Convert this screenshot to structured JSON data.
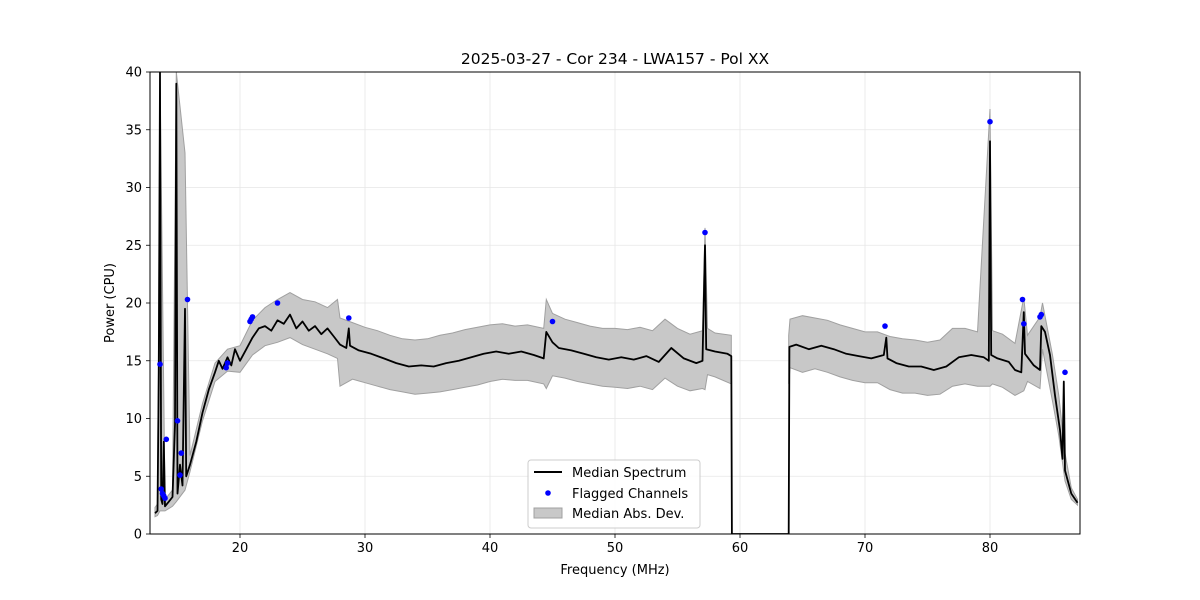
{
  "chart_data": {
    "type": "line",
    "title": "2025-03-27 - Cor 234 - LWA157 - Pol XX",
    "xlabel": "Frequency (MHz)",
    "ylabel": "Power (CPU)",
    "xlim": [
      12.8,
      87.2
    ],
    "ylim": [
      0,
      40
    ],
    "xticks": [
      20,
      30,
      40,
      50,
      60,
      70,
      80
    ],
    "yticks": [
      0,
      5,
      10,
      15,
      20,
      25,
      30,
      35,
      40
    ],
    "grid": true,
    "legend": {
      "placement": "lower-center",
      "entries": [
        "Median Spectrum",
        "Flagged Channels",
        "Median Abs. Dev."
      ]
    },
    "colors": {
      "median": "#000000",
      "flagged": "#0000ff",
      "mad_fill": "#c8c8c8",
      "mad_edge": "#a0a0a0",
      "grid": "#e6e6e6"
    },
    "series": [
      {
        "name": "Median Spectrum",
        "points": [
          [
            13.2,
            1.8
          ],
          [
            13.4,
            2.0
          ],
          [
            13.5,
            14.0
          ],
          [
            13.6,
            40
          ],
          [
            13.7,
            3.0
          ],
          [
            13.8,
            2.6
          ],
          [
            13.9,
            8.0
          ],
          [
            14.0,
            2.4
          ],
          [
            14.3,
            2.8
          ],
          [
            14.6,
            3.2
          ],
          [
            14.8,
            9.5
          ],
          [
            14.9,
            39
          ],
          [
            15.0,
            3.5
          ],
          [
            15.2,
            6.0
          ],
          [
            15.4,
            4.2
          ],
          [
            15.6,
            19.5
          ],
          [
            15.7,
            5.0
          ],
          [
            16.0,
            6.0
          ],
          [
            16.5,
            8.0
          ],
          [
            17.0,
            10.5
          ],
          [
            17.5,
            12.5
          ],
          [
            18.0,
            14.0
          ],
          [
            18.3,
            15.0
          ],
          [
            18.6,
            14.3
          ],
          [
            19.0,
            15.3
          ],
          [
            19.3,
            14.6
          ],
          [
            19.6,
            16.0
          ],
          [
            20.0,
            15.0
          ],
          [
            20.5,
            16.0
          ],
          [
            21.0,
            17.0
          ],
          [
            21.5,
            17.8
          ],
          [
            22.0,
            18.0
          ],
          [
            22.5,
            17.6
          ],
          [
            23.0,
            18.5
          ],
          [
            23.5,
            18.2
          ],
          [
            24.0,
            19.0
          ],
          [
            24.5,
            17.8
          ],
          [
            25.0,
            18.4
          ],
          [
            25.5,
            17.6
          ],
          [
            26.0,
            18.0
          ],
          [
            26.5,
            17.3
          ],
          [
            27.0,
            17.8
          ],
          [
            27.5,
            17.1
          ],
          [
            28.0,
            16.4
          ],
          [
            28.5,
            16.1
          ],
          [
            28.7,
            17.8
          ],
          [
            28.8,
            16.3
          ],
          [
            29.5,
            15.9
          ],
          [
            30.5,
            15.6
          ],
          [
            31.5,
            15.2
          ],
          [
            32.5,
            14.8
          ],
          [
            33.5,
            14.5
          ],
          [
            34.5,
            14.6
          ],
          [
            35.5,
            14.5
          ],
          [
            36.5,
            14.8
          ],
          [
            37.5,
            15.0
          ],
          [
            38.5,
            15.3
          ],
          [
            39.5,
            15.6
          ],
          [
            40.5,
            15.8
          ],
          [
            41.5,
            15.6
          ],
          [
            42.5,
            15.8
          ],
          [
            43.5,
            15.5
          ],
          [
            44.3,
            15.2
          ],
          [
            44.5,
            17.5
          ],
          [
            45.0,
            16.6
          ],
          [
            45.5,
            16.1
          ],
          [
            46.5,
            15.9
          ],
          [
            47.5,
            15.6
          ],
          [
            48.5,
            15.3
          ],
          [
            49.5,
            15.1
          ],
          [
            50.5,
            15.3
          ],
          [
            51.5,
            15.1
          ],
          [
            52.5,
            15.4
          ],
          [
            53.5,
            14.9
          ],
          [
            54.5,
            16.1
          ],
          [
            55.5,
            15.2
          ],
          [
            56.5,
            14.8
          ],
          [
            57.0,
            15.0
          ],
          [
            57.2,
            25.0
          ],
          [
            57.3,
            16.0
          ],
          [
            58.0,
            15.8
          ],
          [
            59.0,
            15.6
          ],
          [
            59.3,
            15.4
          ],
          [
            59.35,
            0
          ],
          [
            63.9,
            0
          ],
          [
            63.95,
            16.2
          ],
          [
            64.5,
            16.4
          ],
          [
            65.5,
            16.0
          ],
          [
            66.5,
            16.3
          ],
          [
            67.5,
            16.0
          ],
          [
            68.5,
            15.6
          ],
          [
            69.5,
            15.4
          ],
          [
            70.5,
            15.2
          ],
          [
            71.5,
            15.5
          ],
          [
            71.7,
            17.0
          ],
          [
            71.8,
            15.2
          ],
          [
            72.5,
            14.8
          ],
          [
            73.5,
            14.5
          ],
          [
            74.5,
            14.5
          ],
          [
            75.5,
            14.2
          ],
          [
            76.5,
            14.5
          ],
          [
            77.5,
            15.3
          ],
          [
            78.5,
            15.5
          ],
          [
            79.5,
            15.3
          ],
          [
            79.9,
            15.0
          ],
          [
            80.0,
            34.0
          ],
          [
            80.1,
            15.5
          ],
          [
            80.6,
            15.2
          ],
          [
            81.5,
            14.9
          ],
          [
            82.0,
            14.2
          ],
          [
            82.5,
            14.0
          ],
          [
            82.7,
            19.2
          ],
          [
            82.8,
            15.6
          ],
          [
            83.5,
            14.6
          ],
          [
            84.0,
            14.2
          ],
          [
            84.1,
            18.0
          ],
          [
            84.4,
            17.5
          ],
          [
            84.8,
            15.5
          ],
          [
            85.2,
            12.0
          ],
          [
            85.6,
            9.0
          ],
          [
            85.8,
            6.5
          ],
          [
            85.9,
            13.2
          ],
          [
            86.0,
            5.5
          ],
          [
            86.5,
            3.5
          ],
          [
            87.0,
            2.7
          ]
        ]
      }
    ],
    "mad_band": {
      "name": "Median Abs. Dev.",
      "upper": [
        [
          13.2,
          2.3
        ],
        [
          13.4,
          2.6
        ],
        [
          13.6,
          40
        ],
        [
          14.0,
          3.0
        ],
        [
          14.6,
          3.8
        ],
        [
          14.9,
          40
        ],
        [
          15.6,
          33
        ],
        [
          16.0,
          6.8
        ],
        [
          17.0,
          11.3
        ],
        [
          18.0,
          14.8
        ],
        [
          19.0,
          16.0
        ],
        [
          20.0,
          16.3
        ],
        [
          21.0,
          18.5
        ],
        [
          22.0,
          19.6
        ],
        [
          23.0,
          20.3
        ],
        [
          24.0,
          20.9
        ],
        [
          25.0,
          20.3
        ],
        [
          26.0,
          20.1
        ],
        [
          27.0,
          19.6
        ],
        [
          27.8,
          20.3
        ],
        [
          28.0,
          18.7
        ],
        [
          29.0,
          18.3
        ],
        [
          30.0,
          17.9
        ],
        [
          31.0,
          17.6
        ],
        [
          32.0,
          17.2
        ],
        [
          33.0,
          16.9
        ],
        [
          34.0,
          16.8
        ],
        [
          35.0,
          16.9
        ],
        [
          36.0,
          17.2
        ],
        [
          37.0,
          17.4
        ],
        [
          38.0,
          17.7
        ],
        [
          39.0,
          17.9
        ],
        [
          40.0,
          18.1
        ],
        [
          41.0,
          18.2
        ],
        [
          42.0,
          18.0
        ],
        [
          43.0,
          18.1
        ],
        [
          44.3,
          17.8
        ],
        [
          44.5,
          20.3
        ],
        [
          45.0,
          19.1
        ],
        [
          46.0,
          18.6
        ],
        [
          47.0,
          18.3
        ],
        [
          48.0,
          18.0
        ],
        [
          49.0,
          17.8
        ],
        [
          50.0,
          17.8
        ],
        [
          51.0,
          17.7
        ],
        [
          52.0,
          17.9
        ],
        [
          53.0,
          17.6
        ],
        [
          54.0,
          18.6
        ],
        [
          55.0,
          17.8
        ],
        [
          56.0,
          17.3
        ],
        [
          57.0,
          17.6
        ],
        [
          57.2,
          26.5
        ],
        [
          57.4,
          17.8
        ],
        [
          58.0,
          17.4
        ],
        [
          59.3,
          17.2
        ],
        [
          63.9,
          17.2
        ],
        [
          64.0,
          18.6
        ],
        [
          65.0,
          18.9
        ],
        [
          66.0,
          18.7
        ],
        [
          67.0,
          18.5
        ],
        [
          68.0,
          18.1
        ],
        [
          69.0,
          17.8
        ],
        [
          70.0,
          17.5
        ],
        [
          71.0,
          17.5
        ],
        [
          72.0,
          17.1
        ],
        [
          73.0,
          16.9
        ],
        [
          74.0,
          16.8
        ],
        [
          75.0,
          16.6
        ],
        [
          76.0,
          16.8
        ],
        [
          77.0,
          17.8
        ],
        [
          78.0,
          17.8
        ],
        [
          79.0,
          17.5
        ],
        [
          80.0,
          36.8
        ],
        [
          80.2,
          17.6
        ],
        [
          81.0,
          17.3
        ],
        [
          82.0,
          16.5
        ],
        [
          82.7,
          20.5
        ],
        [
          83.0,
          17.2
        ],
        [
          84.0,
          18.8
        ],
        [
          84.2,
          20.0
        ],
        [
          85.0,
          15.5
        ],
        [
          85.5,
          12.0
        ],
        [
          86.0,
          7.0
        ],
        [
          86.5,
          4.0
        ],
        [
          87.0,
          3.0
        ]
      ],
      "lower": [
        [
          13.2,
          1.5
        ],
        [
          13.4,
          1.6
        ],
        [
          13.6,
          2.0
        ],
        [
          14.0,
          2.0
        ],
        [
          14.6,
          2.4
        ],
        [
          14.9,
          2.8
        ],
        [
          15.6,
          3.8
        ],
        [
          16.0,
          5.4
        ],
        [
          17.0,
          9.8
        ],
        [
          18.0,
          13.2
        ],
        [
          19.0,
          14.1
        ],
        [
          20.0,
          14.0
        ],
        [
          21.0,
          15.5
        ],
        [
          22.0,
          16.3
        ],
        [
          23.0,
          16.6
        ],
        [
          24.0,
          17.0
        ],
        [
          25.0,
          16.4
        ],
        [
          26.0,
          16.0
        ],
        [
          27.0,
          15.6
        ],
        [
          27.8,
          15.2
        ],
        [
          28.0,
          12.8
        ],
        [
          29.0,
          13.4
        ],
        [
          30.0,
          13.1
        ],
        [
          31.0,
          12.8
        ],
        [
          32.0,
          12.5
        ],
        [
          33.0,
          12.3
        ],
        [
          34.0,
          12.1
        ],
        [
          35.0,
          12.2
        ],
        [
          36.0,
          12.3
        ],
        [
          37.0,
          12.5
        ],
        [
          38.0,
          12.7
        ],
        [
          39.0,
          12.9
        ],
        [
          40.0,
          13.2
        ],
        [
          41.0,
          13.4
        ],
        [
          42.0,
          13.3
        ],
        [
          43.0,
          13.3
        ],
        [
          44.3,
          13.0
        ],
        [
          44.5,
          12.6
        ],
        [
          45.0,
          13.7
        ],
        [
          46.0,
          13.5
        ],
        [
          47.0,
          13.2
        ],
        [
          48.0,
          13.0
        ],
        [
          49.0,
          12.8
        ],
        [
          50.0,
          12.7
        ],
        [
          51.0,
          12.6
        ],
        [
          52.0,
          12.8
        ],
        [
          53.0,
          12.5
        ],
        [
          54.0,
          13.5
        ],
        [
          55.0,
          12.8
        ],
        [
          56.0,
          12.4
        ],
        [
          57.0,
          12.6
        ],
        [
          57.2,
          12.5
        ],
        [
          57.4,
          13.8
        ],
        [
          58.0,
          13.6
        ],
        [
          59.3,
          13.0
        ],
        [
          63.9,
          13.0
        ],
        [
          64.0,
          14.4
        ],
        [
          65.0,
          14.0
        ],
        [
          66.0,
          14.3
        ],
        [
          67.0,
          14.0
        ],
        [
          68.0,
          13.6
        ],
        [
          69.0,
          13.3
        ],
        [
          70.0,
          13.1
        ],
        [
          71.0,
          13.1
        ],
        [
          72.0,
          12.5
        ],
        [
          73.0,
          12.2
        ],
        [
          74.0,
          12.2
        ],
        [
          75.0,
          12.0
        ],
        [
          76.0,
          12.1
        ],
        [
          77.0,
          12.8
        ],
        [
          78.0,
          13.0
        ],
        [
          79.0,
          12.8
        ],
        [
          80.0,
          12.8
        ],
        [
          80.2,
          13.0
        ],
        [
          81.0,
          12.7
        ],
        [
          82.0,
          12.0
        ],
        [
          82.7,
          12.4
        ],
        [
          83.0,
          13.2
        ],
        [
          84.0,
          12.6
        ],
        [
          84.2,
          16.0
        ],
        [
          85.0,
          11.5
        ],
        [
          85.5,
          8.5
        ],
        [
          86.0,
          4.6
        ],
        [
          86.5,
          3.0
        ],
        [
          87.0,
          2.5
        ]
      ]
    },
    "flagged_channels": [
      [
        13.6,
        14.7
      ],
      [
        13.7,
        3.9
      ],
      [
        13.8,
        3.5
      ],
      [
        13.9,
        3.3
      ],
      [
        14.0,
        3.1
      ],
      [
        14.1,
        8.2
      ],
      [
        15.0,
        9.8
      ],
      [
        15.2,
        5.1
      ],
      [
        15.3,
        7.0
      ],
      [
        15.8,
        20.3
      ],
      [
        18.9,
        14.4
      ],
      [
        19.0,
        14.8
      ],
      [
        20.8,
        18.4
      ],
      [
        20.9,
        18.6
      ],
      [
        21.0,
        18.8
      ],
      [
        23.0,
        20.0
      ],
      [
        28.7,
        18.7
      ],
      [
        45.0,
        18.4
      ],
      [
        57.2,
        26.1
      ],
      [
        71.6,
        18.0
      ],
      [
        80.0,
        35.7
      ],
      [
        82.6,
        20.3
      ],
      [
        82.7,
        18.2
      ],
      [
        84.0,
        18.8
      ],
      [
        84.1,
        19.0
      ],
      [
        86.0,
        14.0
      ]
    ]
  }
}
